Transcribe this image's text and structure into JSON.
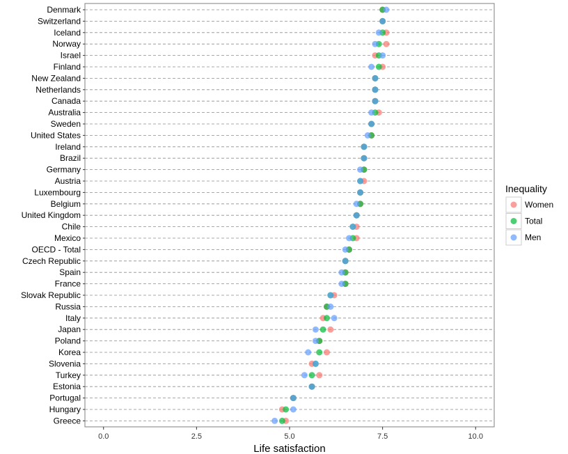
{
  "chart_data": {
    "type": "scatter",
    "title": "",
    "xlabel": "Life satisfaction",
    "ylabel": "",
    "xlim": [
      -0.5,
      10.5
    ],
    "xticks": [
      0.0,
      2.5,
      5.0,
      7.5,
      10.0
    ],
    "xtick_labels": [
      "0.0",
      "2.5",
      "5.0",
      "7.5",
      "10.0"
    ],
    "grid": "horizontal dashed",
    "legend": {
      "title": "Inequality",
      "position": "right"
    },
    "categories": [
      "Denmark",
      "Switzerland",
      "Iceland",
      "Norway",
      "Israel",
      "Finland",
      "New Zealand",
      "Netherlands",
      "Canada",
      "Australia",
      "Sweden",
      "United States",
      "Ireland",
      "Brazil",
      "Germany",
      "Austria",
      "Luxembourg",
      "Belgium",
      "United Kingdom",
      "Chile",
      "Mexico",
      "OECD - Total",
      "Czech Republic",
      "Spain",
      "France",
      "Slovak Republic",
      "Russia",
      "Italy",
      "Japan",
      "Poland",
      "Korea",
      "Slovenia",
      "Turkey",
      "Estonia",
      "Portugal",
      "Hungary",
      "Greece"
    ],
    "series": [
      {
        "name": "Women",
        "color": "#F8766D",
        "values": [
          7.5,
          7.5,
          7.6,
          7.6,
          7.3,
          7.5,
          7.3,
          7.3,
          7.3,
          7.4,
          7.2,
          7.2,
          7.0,
          7.0,
          7.0,
          7.0,
          6.9,
          6.9,
          6.8,
          6.8,
          6.8,
          6.6,
          6.5,
          6.5,
          6.5,
          6.2,
          6.0,
          5.9,
          6.1,
          5.8,
          6.0,
          5.6,
          5.8,
          5.6,
          5.1,
          4.8,
          4.9
        ]
      },
      {
        "name": "Total",
        "color": "#00BA38",
        "values": [
          7.5,
          7.5,
          7.5,
          7.4,
          7.4,
          7.4,
          7.3,
          7.3,
          7.3,
          7.3,
          7.2,
          7.2,
          7.0,
          7.0,
          7.0,
          6.9,
          6.9,
          6.9,
          6.8,
          6.7,
          6.7,
          6.6,
          6.5,
          6.5,
          6.5,
          6.1,
          6.0,
          6.0,
          5.9,
          5.8,
          5.8,
          5.7,
          5.6,
          5.6,
          5.1,
          4.9,
          4.8
        ]
      },
      {
        "name": "Men",
        "color": "#619CFF",
        "values": [
          7.6,
          7.5,
          7.4,
          7.3,
          7.5,
          7.2,
          7.3,
          7.3,
          7.3,
          7.2,
          7.2,
          7.1,
          7.0,
          7.0,
          6.9,
          6.9,
          6.9,
          6.8,
          6.8,
          6.7,
          6.6,
          6.5,
          6.5,
          6.4,
          6.4,
          6.1,
          6.1,
          6.2,
          5.7,
          5.7,
          5.5,
          5.7,
          5.4,
          5.6,
          5.1,
          5.1,
          4.6
        ]
      }
    ]
  }
}
